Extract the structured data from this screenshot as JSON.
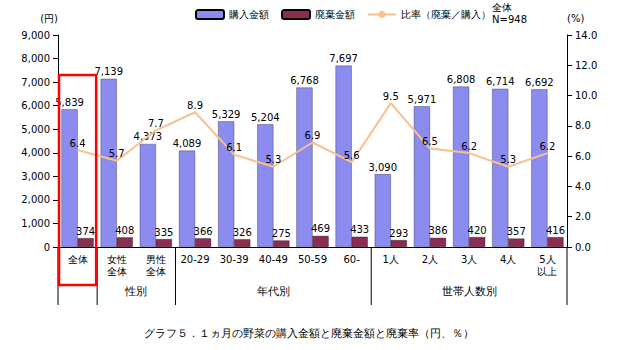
{
  "chart_data": {
    "type": "bar",
    "title": "グラフ５．１ヵ月の野菜の購入金額と廃棄金額と廃棄率（円、％）",
    "ylabel": "(円)",
    "y2label": "(%)",
    "categories": [
      "全体",
      "女性\n全体",
      "男性\n全体",
      "20-29",
      "30-39",
      "40-49",
      "50-59",
      "60-",
      "1人",
      "2人",
      "3人",
      "4人",
      "5人\n以上"
    ],
    "series": [
      {
        "name": "購入金額",
        "type": "bar",
        "color": "#8c8cf0",
        "values": [
          5839,
          7139,
          4373,
          4089,
          5329,
          5204,
          6768,
          7697,
          3090,
          5971,
          6808,
          6714,
          6692
        ],
        "value_labels": [
          "5,839",
          "7,139",
          "4,373",
          "4,089",
          "5,329",
          "5,204",
          "6,768",
          "7,697",
          "3,090",
          "5,971",
          "6,808",
          "6,714",
          "6,692"
        ]
      },
      {
        "name": "廃棄金額",
        "type": "bar",
        "color": "#8b2d52",
        "values": [
          374,
          408,
          335,
          366,
          326,
          275,
          469,
          433,
          293,
          386,
          420,
          357,
          416
        ]
      },
      {
        "name": "比率（廃棄／購入）",
        "type": "line",
        "axis": "y2",
        "color": "#f8c08c",
        "values": [
          6.4,
          5.7,
          7.7,
          8.9,
          6.1,
          5.3,
          6.9,
          5.6,
          9.5,
          6.5,
          6.2,
          5.3,
          6.2
        ]
      }
    ],
    "ylim": [
      0,
      9000
    ],
    "yticks": [
      0,
      {
        "value": 1000,
        "label": "1,000"
      },
      {
        "value": 2000,
        "label": "2,000"
      },
      {
        "value": 3000,
        "label": "3,000"
      },
      {
        "value": 4000,
        "label": "4,000"
      },
      {
        "value": 5000,
        "label": "5,000"
      },
      {
        "value": 6000,
        "label": "6,000"
      },
      {
        "value": 7000,
        "label": "7,000"
      },
      {
        "value": 8000,
        "label": "8,000"
      },
      {
        "value": 9000,
        "label": "9,000"
      }
    ],
    "y2lim": [
      0,
      14
    ],
    "y2ticks": [
      {
        "value": 0,
        "label": "0.0"
      },
      {
        "value": 2,
        "label": "2.0"
      },
      {
        "value": 4,
        "label": "4.0"
      },
      {
        "value": 6,
        "label": "6.0"
      },
      {
        "value": 8,
        "label": "8.0"
      },
      {
        "value": 10,
        "label": "10.0"
      },
      {
        "value": 12,
        "label": "12.0"
      },
      {
        "value": 14,
        "label": "14.0"
      }
    ],
    "legend": "top",
    "grid": false,
    "data_labels": true,
    "annotations": [
      {
        "text": "全体\nN=948"
      },
      {
        "text": "性別",
        "from": "女性\n全体",
        "to": "男性\n全体"
      },
      {
        "text": "年代別",
        "from": "20-29",
        "to": "60-"
      },
      {
        "text": "世帯人数別",
        "from": "1人",
        "to": "5人\n以上"
      },
      {
        "box": "全体",
        "color": "#ff0000"
      }
    ]
  }
}
